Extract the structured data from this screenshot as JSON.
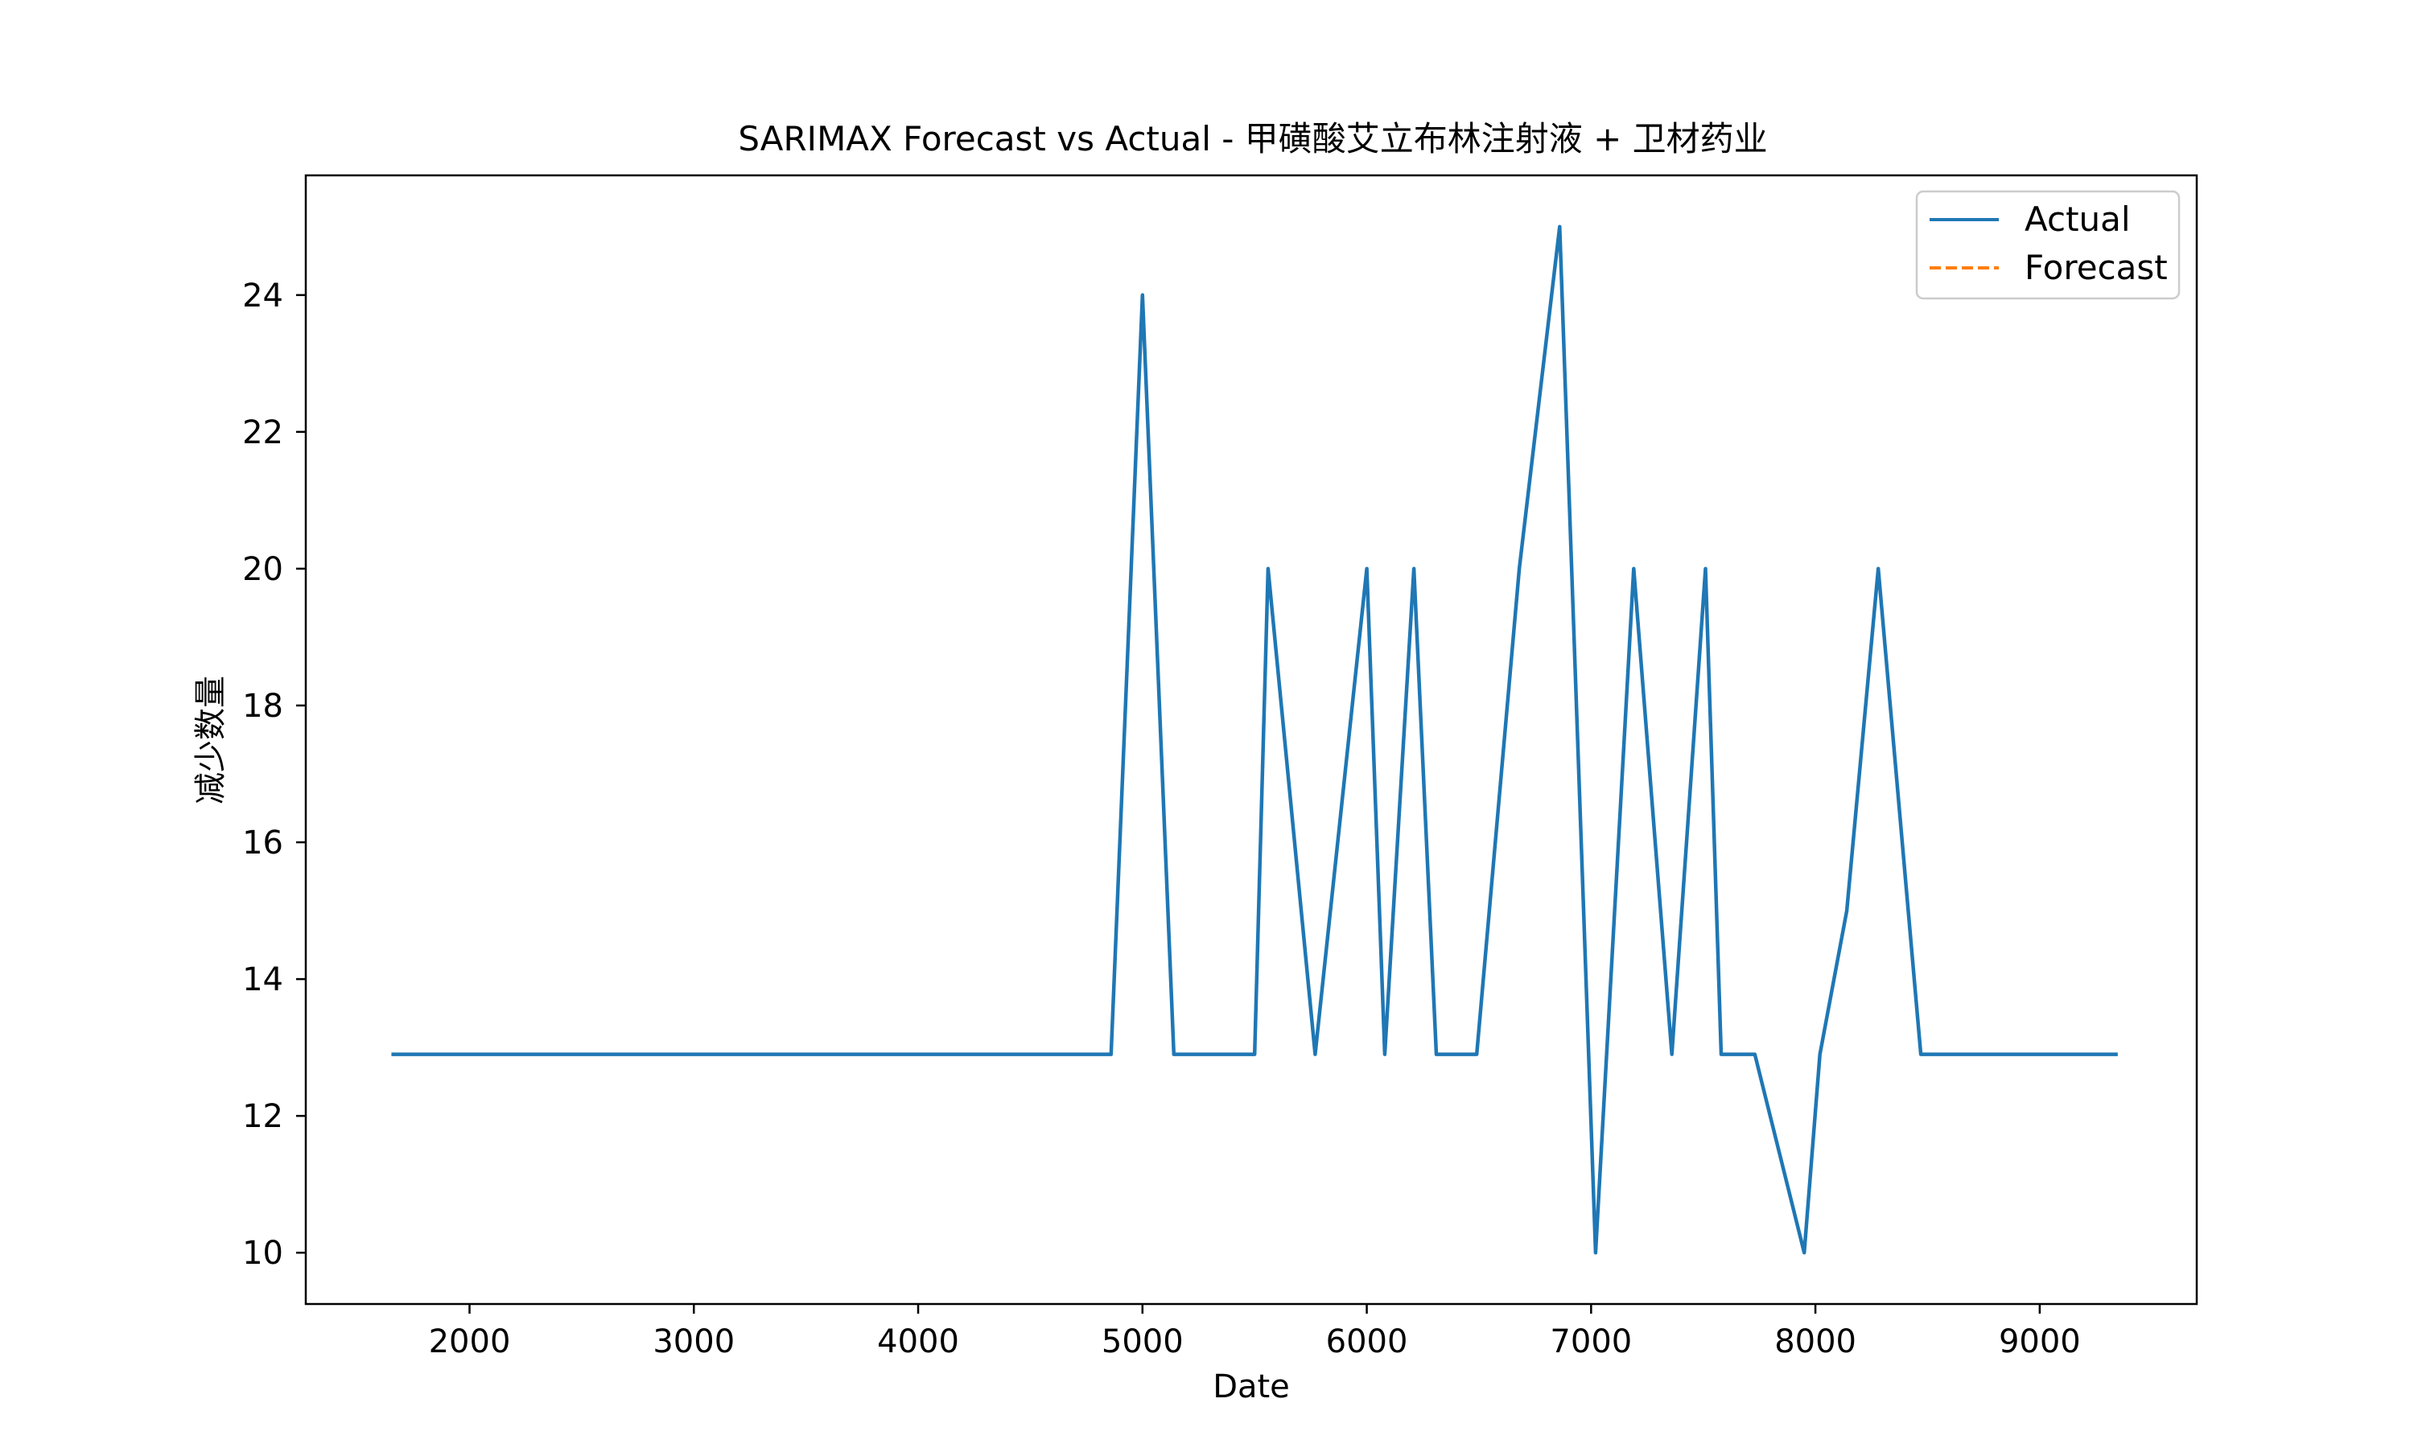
{
  "chart_data": {
    "type": "line",
    "title": "SARIMAX Forecast vs Actual - 甲磺酸艾立布林注射液 + 卫材药业",
    "xlabel": "Date",
    "ylabel": "减少数量",
    "xlim": [
      1270,
      9700
    ],
    "ylim": [
      9.25,
      25.75
    ],
    "x_ticks": [
      2000,
      3000,
      4000,
      5000,
      6000,
      7000,
      8000,
      9000
    ],
    "y_ticks": [
      10,
      12,
      14,
      16,
      18,
      20,
      22,
      24
    ],
    "grid": false,
    "legend_position": "top-right",
    "series": [
      {
        "name": "Actual",
        "color": "#1f77b4",
        "style": "solid",
        "x": [
          1660,
          4860,
          5000,
          5140,
          5500,
          5560,
          5770,
          6000,
          6080,
          6210,
          6310,
          6490,
          6680,
          6860,
          7020,
          7190,
          7360,
          7510,
          7580,
          7730,
          7950,
          8020,
          8140,
          8280,
          8470,
          9340
        ],
        "y": [
          12.9,
          12.9,
          24,
          12.9,
          12.9,
          20,
          12.9,
          20,
          12.9,
          20,
          12.9,
          12.9,
          20,
          25,
          10,
          20,
          12.9,
          20,
          12.9,
          12.9,
          10,
          12.9,
          15,
          20,
          12.9,
          12.9
        ]
      },
      {
        "name": "Forecast",
        "color": "#ff7f0e",
        "style": "dashed",
        "x": [],
        "y": []
      }
    ]
  }
}
